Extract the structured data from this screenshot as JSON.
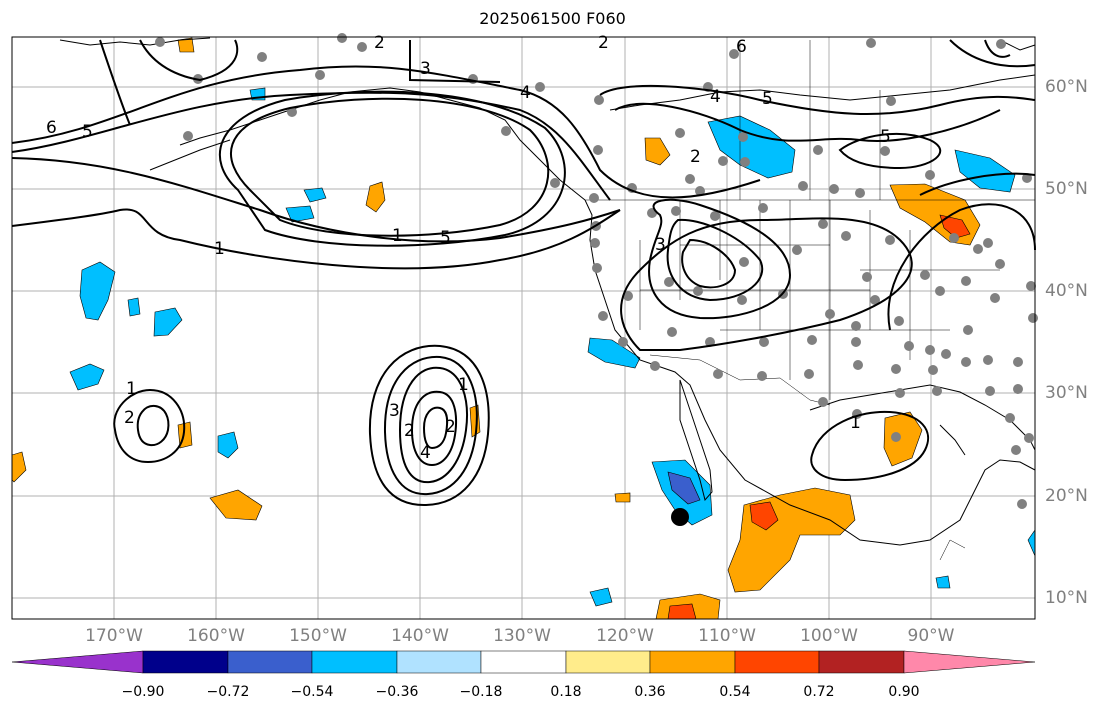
{
  "title": "2025061500 F060",
  "lon_labels": [
    "170°W",
    "160°W",
    "150°W",
    "140°W",
    "130°W",
    "120°W",
    "110°W",
    "100°W",
    "90°W"
  ],
  "lat_labels": [
    "60°N",
    "50°N",
    "40°N",
    "30°N",
    "20°N",
    "10°N"
  ],
  "colorbar": {
    "tick_labels": [
      "−0.90",
      "−0.72",
      "−0.54",
      "−0.36",
      "−0.18",
      "0.18",
      "0.36",
      "0.54",
      "0.72",
      "0.90"
    ],
    "colors": [
      "#9932cc",
      "#00008b",
      "#3a5fcd",
      "#00bfff",
      "#b0e2ff",
      "#ffffff",
      "#ffec8b",
      "#ffa500",
      "#ff4500",
      "#b22222",
      "#ff88aa"
    ]
  },
  "contour_labels": [
    "2",
    "2",
    "3",
    "4",
    "5",
    "6",
    "5",
    "6",
    "5",
    "1",
    "5",
    "2",
    "4",
    "3",
    "1",
    "2",
    "1",
    "2",
    "3",
    "2",
    "4",
    "1",
    "1"
  ],
  "colors": {
    "land_outline": "#000000",
    "grid": "#b0b0b0",
    "station_dot": "#808080",
    "marker": "#000000"
  }
}
